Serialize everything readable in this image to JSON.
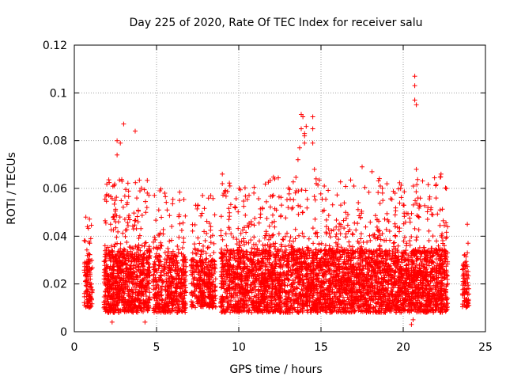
{
  "chart_data": {
    "type": "scatter",
    "title": "Day 225 of 2020, Rate Of TEC Index for receiver salu",
    "xlabel": "GPS time / hours",
    "ylabel": "ROTI / TECUs",
    "xlim": [
      0,
      25
    ],
    "ylim": [
      0,
      0.12
    ],
    "xticks": [
      0,
      5,
      10,
      15,
      20,
      25
    ],
    "xtick_labels": [
      "0",
      "5",
      "10",
      "15",
      "20",
      "25"
    ],
    "yticks": [
      0,
      0.02,
      0.04,
      0.06,
      0.08,
      0.1,
      0.12
    ],
    "ytick_labels": [
      "0",
      "0.02",
      "0.04",
      "0.06",
      "0.08",
      "0.1",
      "0.12"
    ],
    "grid": true,
    "marker": "plus",
    "color": "#ff0000",
    "series": [
      {
        "name": "ROTI",
        "clusters": [
          {
            "x_range": [
              0.6,
              1.1
            ],
            "n": 120,
            "base": [
              0.01,
              0.03
            ],
            "tail_max": 0.049
          },
          {
            "x_range": [
              1.8,
              4.6
            ],
            "n": 900,
            "base": [
              0.008,
              0.034
            ],
            "tail_max": 0.064
          },
          {
            "x_range": [
              4.8,
              6.8
            ],
            "n": 500,
            "base": [
              0.008,
              0.032
            ],
            "tail_max": 0.06
          },
          {
            "x_range": [
              7.1,
              8.6
            ],
            "n": 380,
            "base": [
              0.01,
              0.03
            ],
            "tail_max": 0.058
          },
          {
            "x_range": [
              8.9,
              22.7
            ],
            "n": 4200,
            "base": [
              0.008,
              0.034
            ],
            "tail_max": 0.065
          },
          {
            "x_range": [
              23.6,
              24.0
            ],
            "n": 90,
            "base": [
              0.01,
              0.028
            ],
            "tail_max": 0.046
          }
        ],
        "points": [
          {
            "x": 0.7,
            "y": 0.048
          },
          {
            "x": 0.8,
            "y": 0.044
          },
          {
            "x": 1.0,
            "y": 0.039
          },
          {
            "x": 2.1,
            "y": 0.057
          },
          {
            "x": 2.2,
            "y": 0.045
          },
          {
            "x": 2.6,
            "y": 0.074
          },
          {
            "x": 2.6,
            "y": 0.08
          },
          {
            "x": 2.8,
            "y": 0.079
          },
          {
            "x": 2.9,
            "y": 0.063
          },
          {
            "x": 3.0,
            "y": 0.087
          },
          {
            "x": 3.3,
            "y": 0.048
          },
          {
            "x": 3.6,
            "y": 0.043
          },
          {
            "x": 3.7,
            "y": 0.084
          },
          {
            "x": 3.8,
            "y": 0.056
          },
          {
            "x": 4.3,
            "y": 0.004
          },
          {
            "x": 2.3,
            "y": 0.004
          },
          {
            "x": 5.2,
            "y": 0.059
          },
          {
            "x": 5.5,
            "y": 0.058
          },
          {
            "x": 6.4,
            "y": 0.055
          },
          {
            "x": 7.8,
            "y": 0.057
          },
          {
            "x": 9.0,
            "y": 0.066
          },
          {
            "x": 9.0,
            "y": 0.062
          },
          {
            "x": 9.1,
            "y": 0.058
          },
          {
            "x": 9.4,
            "y": 0.047
          },
          {
            "x": 12.6,
            "y": 0.053
          },
          {
            "x": 13.0,
            "y": 0.052
          },
          {
            "x": 13.5,
            "y": 0.059
          },
          {
            "x": 13.6,
            "y": 0.072
          },
          {
            "x": 13.7,
            "y": 0.077
          },
          {
            "x": 13.8,
            "y": 0.085
          },
          {
            "x": 13.8,
            "y": 0.091
          },
          {
            "x": 13.9,
            "y": 0.09
          },
          {
            "x": 14.0,
            "y": 0.083
          },
          {
            "x": 14.0,
            "y": 0.082
          },
          {
            "x": 14.1,
            "y": 0.086
          },
          {
            "x": 14.0,
            "y": 0.079
          },
          {
            "x": 14.5,
            "y": 0.09
          },
          {
            "x": 14.5,
            "y": 0.085
          },
          {
            "x": 14.5,
            "y": 0.079
          },
          {
            "x": 14.6,
            "y": 0.068
          },
          {
            "x": 14.7,
            "y": 0.064
          },
          {
            "x": 15.2,
            "y": 0.061
          },
          {
            "x": 16.2,
            "y": 0.053
          },
          {
            "x": 16.5,
            "y": 0.05
          },
          {
            "x": 17.0,
            "y": 0.061
          },
          {
            "x": 17.5,
            "y": 0.069
          },
          {
            "x": 18.1,
            "y": 0.067
          },
          {
            "x": 18.6,
            "y": 0.061
          },
          {
            "x": 19.5,
            "y": 0.058
          },
          {
            "x": 20.0,
            "y": 0.053
          },
          {
            "x": 20.5,
            "y": 0.003
          },
          {
            "x": 20.6,
            "y": 0.005
          },
          {
            "x": 20.7,
            "y": 0.107
          },
          {
            "x": 20.7,
            "y": 0.103
          },
          {
            "x": 20.7,
            "y": 0.097
          },
          {
            "x": 20.8,
            "y": 0.095
          },
          {
            "x": 20.8,
            "y": 0.068
          },
          {
            "x": 20.9,
            "y": 0.056
          },
          {
            "x": 21.5,
            "y": 0.052
          },
          {
            "x": 21.8,
            "y": 0.049
          },
          {
            "x": 22.3,
            "y": 0.066
          },
          {
            "x": 22.0,
            "y": 0.056
          },
          {
            "x": 23.9,
            "y": 0.045
          },
          {
            "x": 23.9,
            "y": 0.033
          }
        ]
      }
    ]
  }
}
